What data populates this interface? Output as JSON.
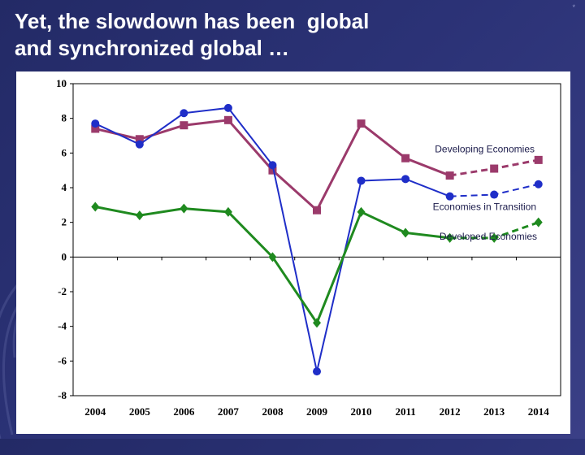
{
  "slide": {
    "title_line1": "Yet, the slowdown has been  global",
    "title_line2": "and synchronized global …",
    "page_mark": "*"
  },
  "chart_data": {
    "type": "line",
    "title": "",
    "xlabel": "",
    "ylabel": "",
    "categories": [
      "2004",
      "2005",
      "2006",
      "2007",
      "2008",
      "2009",
      "2010",
      "2011",
      "2012",
      "2013",
      "2014"
    ],
    "ylim": [
      -8,
      10
    ],
    "yticks": [
      "10",
      "8",
      "6",
      "4",
      "2",
      "0",
      "-2",
      "-4",
      "-6",
      "-8"
    ],
    "grid": false,
    "series": [
      {
        "name": "Developing Economies",
        "color": "#9b3a6b",
        "marker": "square",
        "values": [
          7.4,
          6.8,
          7.6,
          7.9,
          5.0,
          2.7,
          7.7,
          5.7,
          4.7,
          5.1,
          5.6
        ],
        "dashed_from_index": 8
      },
      {
        "name": "Economies in Transition",
        "color": "#1f2ec8",
        "marker": "circle",
        "values": [
          7.7,
          6.5,
          8.3,
          8.6,
          5.3,
          -6.6,
          4.4,
          4.5,
          3.5,
          3.6,
          4.2
        ],
        "dashed_from_index": 8
      },
      {
        "name": "Developed Economies",
        "color": "#1f8a1f",
        "marker": "diamond",
        "values": [
          2.9,
          2.4,
          2.8,
          2.6,
          0.0,
          -3.8,
          2.6,
          1.4,
          1.1,
          1.1,
          2.0
        ],
        "dashed_from_index": 8
      }
    ]
  }
}
